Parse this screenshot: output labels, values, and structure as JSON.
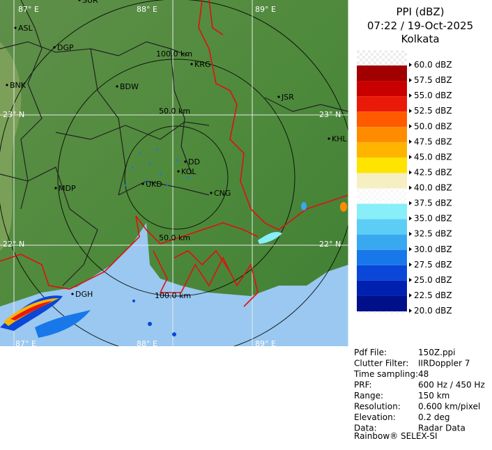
{
  "header": {
    "title": "PPI (dBZ)",
    "time": "07:22 / 19-Oct-2025",
    "location": "Kolkata"
  },
  "legend": [
    {
      "label": "60.0 dBZ",
      "color": "#ffffff"
    },
    {
      "label": "57.5 dBZ",
      "color": "#a00000"
    },
    {
      "label": "55.0 dBZ",
      "color": "#c80000"
    },
    {
      "label": "52.5 dBZ",
      "color": "#ea1a0a"
    },
    {
      "label": "50.0 dBZ",
      "color": "#ff5a00"
    },
    {
      "label": "47.5 dBZ",
      "color": "#ff8c00"
    },
    {
      "label": "45.0 dBZ",
      "color": "#ffb400"
    },
    {
      "label": "42.5 dBZ",
      "color": "#ffe400"
    },
    {
      "label": "40.0 dBZ",
      "color": "#f6efc2"
    },
    {
      "label": "37.5 dBZ",
      "color": "#ffffff"
    },
    {
      "label": "35.0 dBZ",
      "color": "#88eef8"
    },
    {
      "label": "32.5 dBZ",
      "color": "#5ccdf5"
    },
    {
      "label": "30.0 dBZ",
      "color": "#38a8f0"
    },
    {
      "label": "27.5 dBZ",
      "color": "#1878ea"
    },
    {
      "label": "25.0 dBZ",
      "color": "#0a46d8"
    },
    {
      "label": "22.5 dBZ",
      "color": "#0020b0"
    },
    {
      "label": "20.0 dBZ",
      "color": "#00108a"
    }
  ],
  "map": {
    "cities": [
      "ASL",
      "DGP",
      "BNK",
      "BDW",
      "KRG",
      "JSR",
      "KHL",
      "MDP",
      "DD",
      "KOL",
      "UKD",
      "CNG",
      "DGH",
      "SUR"
    ],
    "ranges": [
      "100.0 km",
      "50.0 km",
      "50.0 km",
      "100.0 km"
    ],
    "grid_labels": [
      "87° E",
      "88° E",
      "89° E",
      "23° N",
      "23° N",
      "22° N",
      "22° N",
      "87° E",
      "88° E",
      "89° E"
    ]
  },
  "info": [
    {
      "key": "Pdf File:",
      "value": "150Z.ppi"
    },
    {
      "key": "Clutter Filter:",
      "value": "IIRDoppler 7"
    },
    {
      "key": "Time sampling:",
      "value": "48"
    },
    {
      "key": "PRF:",
      "value": "600 Hz / 450 Hz"
    },
    {
      "key": "Range:",
      "value": "150 km"
    },
    {
      "key": "Resolution:",
      "value": "0.600 km/pixel"
    },
    {
      "key": "Elevation:",
      "value": "0.2 deg"
    },
    {
      "key": "Data:",
      "value": "Radar Data"
    }
  ],
  "footer": "Rainbow® SELEX-SI"
}
